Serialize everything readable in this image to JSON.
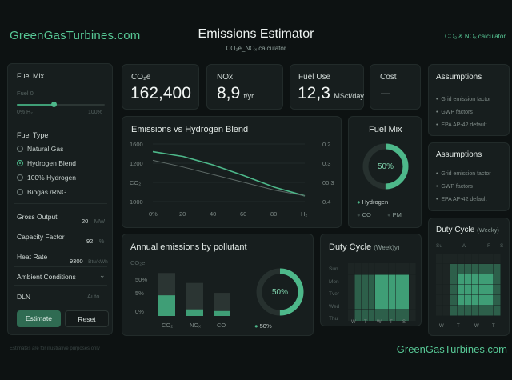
{
  "header": {
    "brand": "GreenGasTurbines.com",
    "title": "Emissions Estimator",
    "subtitle": "CO₂e_NOₓ calculator",
    "right_label": "CO₂ & NOₓ calculator"
  },
  "left_panel": {
    "fuel_mix_title": "Fuel Mix",
    "fuel_label": "Fuel 0",
    "slider_min": "0% H₂",
    "slider_max": "100%",
    "slider_level": 0.42,
    "fuel_type_title": "Fuel Type",
    "fuel_types": [
      "Natural Gas",
      "Hydrogen Blend",
      "100% Hydrogen",
      "Biogas /RNG"
    ],
    "fuel_type_selected": "Hydrogen Blend",
    "gross_output_label": "Gross Output",
    "gross_output_value": "20",
    "gross_output_unit": "MW",
    "capacity_factor_label": "Capacity Factor",
    "capacity_factor_value": "92",
    "capacity_factor_unit": "%",
    "heat_rate_label": "Heat Rate",
    "heat_rate_value": "9300",
    "heat_rate_unit": "Btu/kWh",
    "ambient_label": "Ambient Conditions",
    "dln_label": "DLN",
    "dln_value": "Auto",
    "estimate_button": "Estimate",
    "reset_button": "Reset"
  },
  "kpis": {
    "co2e_label": "CO₂e",
    "co2e_value": "162,400",
    "nox_label": "NOx",
    "nox_value": "8,9",
    "nox_unit": "t/yr",
    "fuel_use_label": "Fuel Use",
    "fuel_use_value": "12,3",
    "fuel_use_unit": "MScf/day",
    "cost_label": "Cost",
    "cost_value": "—"
  },
  "assumptions": {
    "title": "Assumptions",
    "items": [
      "Grid emission factor",
      "GWP factors",
      "EPA AP-42 default"
    ]
  },
  "assumptions2": {
    "title": "Assumptions",
    "items": [
      "Grid emission factor",
      "GWP factors",
      "EPA AP-42 default"
    ]
  },
  "hydrogen_chart": {
    "title": "Emissions vs Hydrogen Blend",
    "y_left_ticks": [
      "1600",
      "1200",
      "CO₂",
      "1000"
    ],
    "y_right_ticks": [
      "0.2",
      "0.3",
      "00.3",
      "0.4"
    ],
    "x_ticks": [
      "0%",
      "20",
      "40",
      "60",
      "80",
      "H₂"
    ]
  },
  "fuel_mix_donut": {
    "title": "Fuel Mix",
    "center_label": "50%",
    "legend": [
      "Hydrogen",
      "CO",
      "PM"
    ],
    "level": 0.5
  },
  "pollutant_chart": {
    "title": "Annual emissions by pollutant",
    "ylabel": "CO₂e",
    "y_ticks": [
      "50%",
      "5%",
      "0%"
    ],
    "categories": [
      "CO₂",
      "NOₓ",
      "CO"
    ],
    "donut_label": "50%",
    "donut_legend": "50%",
    "donut_level": 0.5
  },
  "duty_cycle": {
    "title": "Duty Cycle",
    "title_suffix": "(Week)y)",
    "days": [
      "Sun",
      "Mon",
      "Tver",
      "Wed",
      "Thu"
    ],
    "x_ticks": [
      "W",
      "T",
      "W",
      "T",
      "S"
    ]
  },
  "duty_cycle_small": {
    "title": "Duty Cycle",
    "title_suffix": "(Weeky)",
    "days": [
      "Su",
      "W",
      "F",
      "S"
    ],
    "x_ticks": [
      "W",
      "T",
      "W",
      "T"
    ]
  },
  "chart_data": [
    {
      "type": "line",
      "title": "Emissions vs Hydrogen Blend",
      "x": [
        0,
        20,
        40,
        60,
        80,
        100
      ],
      "series": [
        {
          "values": [
            1520,
            1470,
            1380,
            1270,
            1150,
            1060
          ]
        },
        {
          "values": [
            1430,
            1360,
            1280,
            1200,
            1120,
            1060
          ]
        }
      ],
      "ylim": [
        1000,
        1600
      ]
    },
    {
      "type": "bar",
      "title": "Annual emissions by pollutant",
      "categories": [
        "CO₂",
        "NOₓ",
        "CO"
      ],
      "series": [
        {
          "values": [
            52,
            40,
            28
          ]
        },
        {
          "values": [
            25,
            8,
            6
          ]
        }
      ]
    }
  ],
  "footer": {
    "note": "Estimates are for illustrative purposes only",
    "brand": "GreenGasTurbines.com"
  },
  "colors": {
    "accent": "#4db88a",
    "accent_dark": "#2f6b52",
    "background": "#0d1212",
    "card": "#171e1e"
  }
}
